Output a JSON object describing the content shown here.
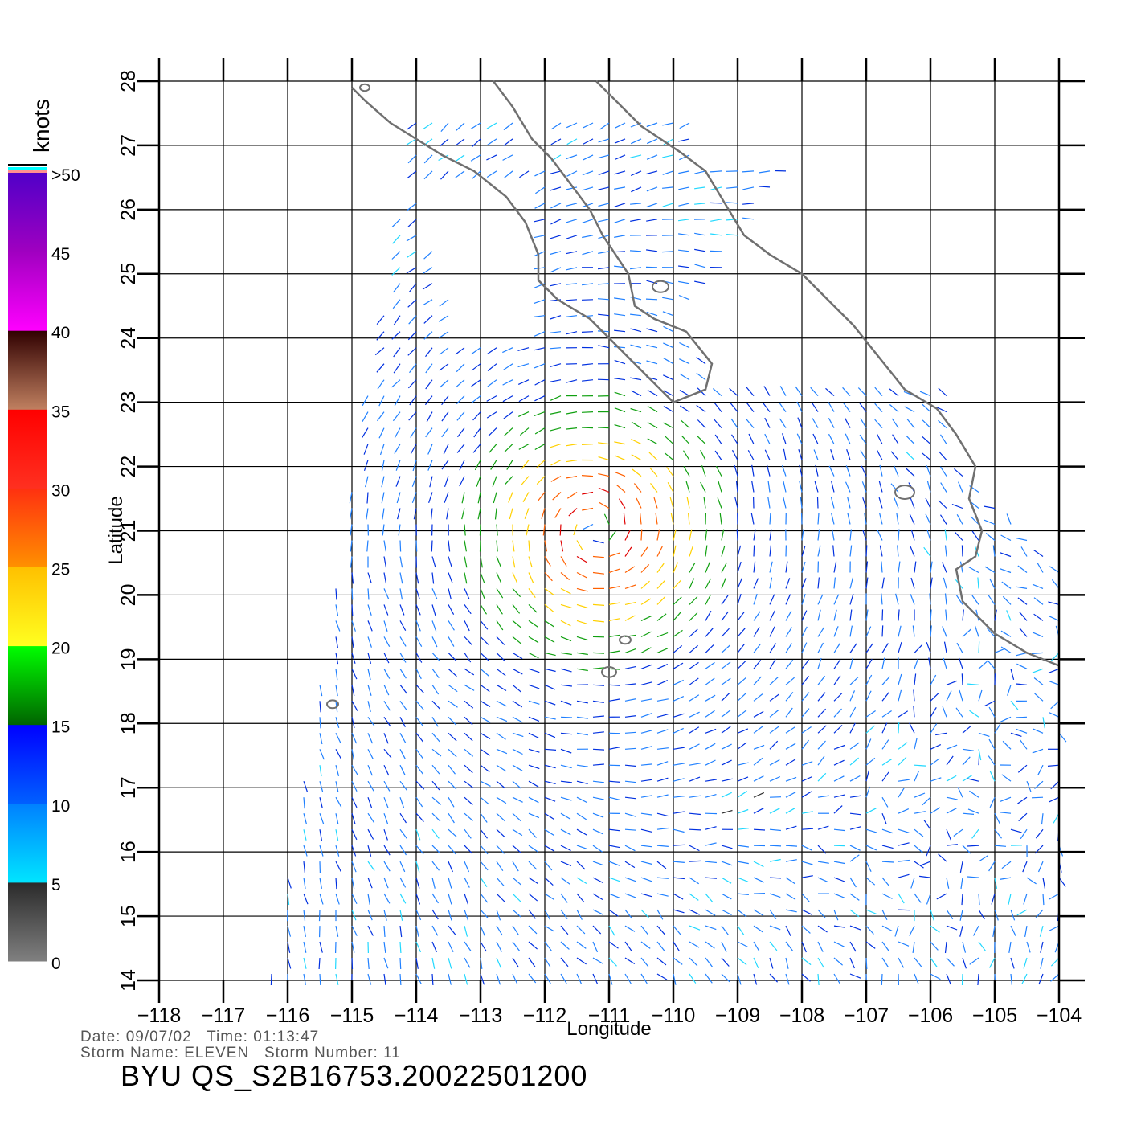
{
  "colorbar": {
    "unit_label": "knots",
    "bands": [
      {
        "label": "0",
        "value": 0,
        "colors": [
          "#808080",
          "#2a2a2a"
        ]
      },
      {
        "label": "5",
        "value": 5,
        "colors": [
          "#00e5ff",
          "#0080ff"
        ]
      },
      {
        "label": "10",
        "value": 10,
        "colors": [
          "#0060ff",
          "#0000ff"
        ]
      },
      {
        "label": "15",
        "value": 15,
        "colors": [
          "#006400",
          "#00ff00"
        ]
      },
      {
        "label": "20",
        "value": 20,
        "colors": [
          "#ffff20",
          "#ffc000"
        ]
      },
      {
        "label": "25",
        "value": 25,
        "colors": [
          "#ff9000",
          "#ff3010"
        ]
      },
      {
        "label": "30",
        "value": 30,
        "colors": [
          "#ff3020",
          "#ff0000"
        ]
      },
      {
        "label": "35",
        "value": 35,
        "colors": [
          "#c08060",
          "#300000"
        ]
      },
      {
        "label": "40",
        "value": 40,
        "colors": [
          "#ff00ff",
          "#a000c0"
        ]
      },
      {
        "label": "45",
        "value": 45,
        "colors": [
          "#a000c0",
          "#5000c8"
        ]
      },
      {
        "label": ">50",
        "value": 50,
        "colors": []
      }
    ],
    "top_stripes": [
      "#ff9090",
      "#00ffff",
      "#000000"
    ]
  },
  "axes": {
    "xlabel": "Longitude",
    "ylabel": "Latitude",
    "lon_range": [
      -118,
      -104
    ],
    "lat_range": [
      14,
      28
    ],
    "lon_ticks": [
      "−118",
      "−117",
      "−116",
      "−115",
      "−114",
      "−113",
      "−112",
      "−111",
      "−110",
      "−109",
      "−108",
      "−107",
      "−106",
      "−105",
      "−104"
    ],
    "lat_ticks": [
      "14",
      "15",
      "16",
      "17",
      "18",
      "19",
      "20",
      "21",
      "22",
      "23",
      "24",
      "25",
      "26",
      "27",
      "28"
    ],
    "grid": true
  },
  "storm": {
    "center_lon": -111.2,
    "center_lat": 21.0,
    "max_wind_knots": 32
  },
  "info": {
    "line1": "Date: 09/07/02   Time: 01:13:47",
    "line2": "Storm Name: ELEVEN   Storm Number: 11"
  },
  "title": "BYU QS_S2B16753.20022501200",
  "colors": {
    "coastline": "#707070",
    "grid": "#000000"
  }
}
